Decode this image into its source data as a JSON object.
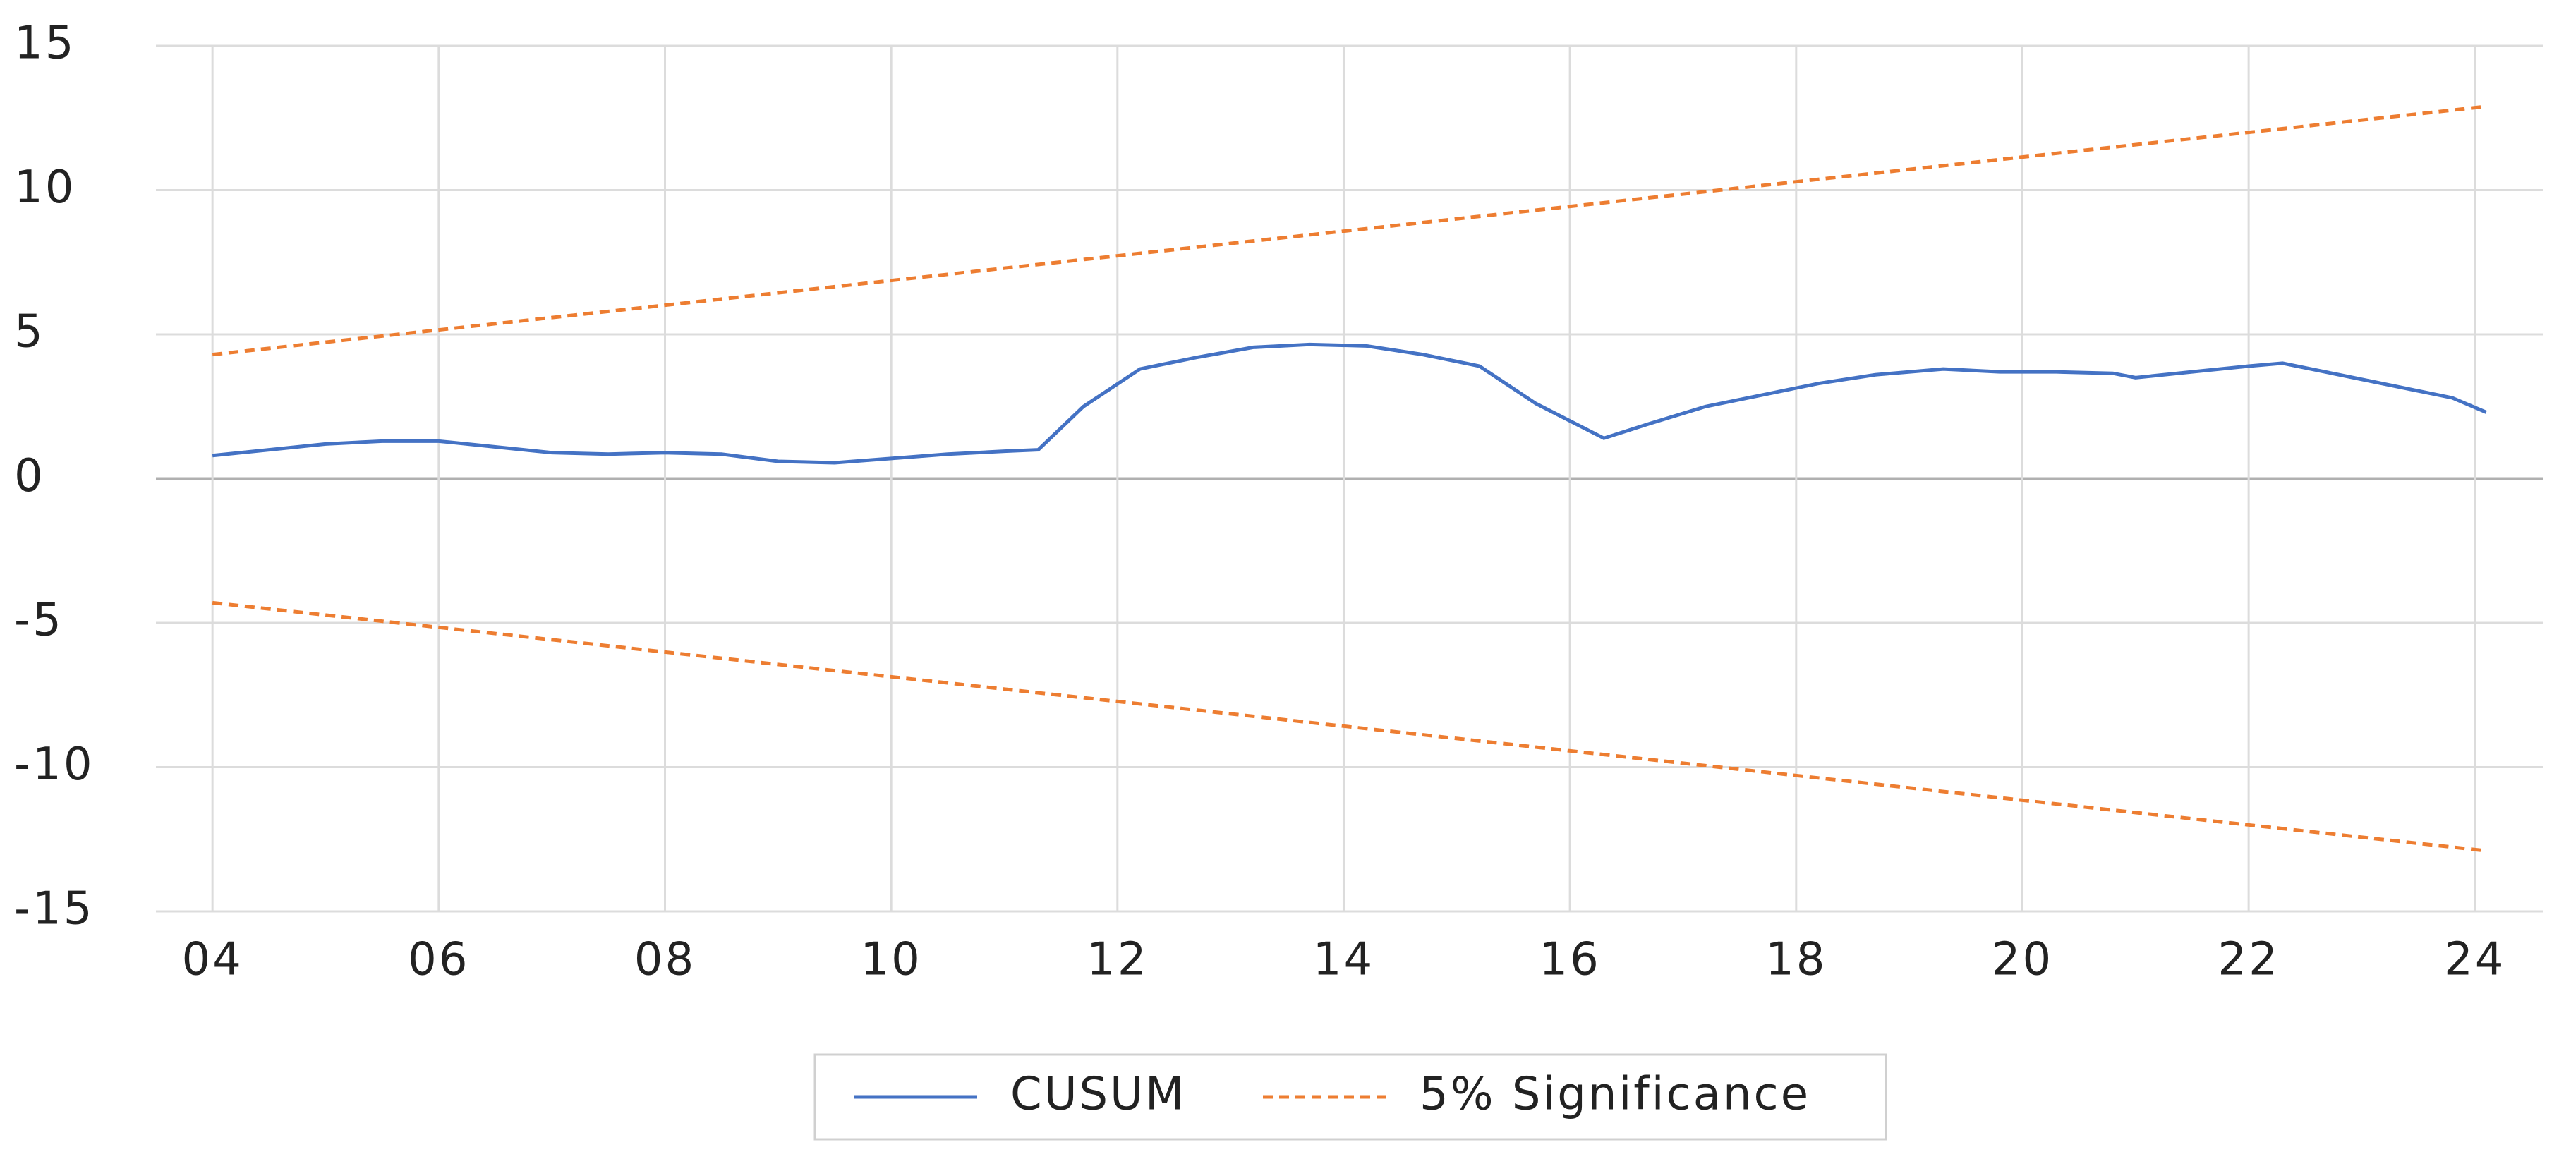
{
  "chart_data": {
    "type": "line",
    "xlim": [
      3.5,
      24.6
    ],
    "xticks": [
      {
        "value": 4,
        "label": "04"
      },
      {
        "value": 6,
        "label": "06"
      },
      {
        "value": 8,
        "label": "08"
      },
      10,
      12,
      14,
      16,
      18,
      20,
      22,
      24
    ],
    "ylim": [
      -15,
      15
    ],
    "yticks": [
      -15,
      -10,
      -5,
      0,
      5,
      10,
      15
    ],
    "grid": true,
    "legend": "bottom",
    "series": [
      {
        "name": "CUSUM",
        "color": "#4472c4",
        "style": "solid",
        "x": [
          4.0,
          4.5,
          5.0,
          5.5,
          6.0,
          6.5,
          7.0,
          7.5,
          8.0,
          8.5,
          9.0,
          9.5,
          10.0,
          10.5,
          11.0,
          11.3,
          11.7,
          12.2,
          12.7,
          13.2,
          13.7,
          14.2,
          14.7,
          15.2,
          15.7,
          16.3,
          16.7,
          17.2,
          17.7,
          18.2,
          18.7,
          19.3,
          19.8,
          20.3,
          20.8,
          21.0,
          21.5,
          22.0,
          22.3,
          22.8,
          23.3,
          23.8,
          24.1
        ],
        "values": [
          0.8,
          1.0,
          1.2,
          1.3,
          1.3,
          1.1,
          0.9,
          0.85,
          0.9,
          0.85,
          0.6,
          0.55,
          0.7,
          0.85,
          0.95,
          1.0,
          2.5,
          3.8,
          4.2,
          4.55,
          4.65,
          4.6,
          4.3,
          3.9,
          2.6,
          1.4,
          1.9,
          2.5,
          2.9,
          3.3,
          3.6,
          3.8,
          3.7,
          3.7,
          3.65,
          3.5,
          3.7,
          3.9,
          4.0,
          3.6,
          3.2,
          2.8,
          2.3
        ]
      },
      {
        "name": "5% Significance",
        "color": "#ed7d31",
        "style": "dashed",
        "x": [
          4.0,
          24.1
        ],
        "values": [
          4.3,
          12.9
        ],
        "values_lower": [
          -4.3,
          -12.9
        ]
      }
    ]
  }
}
